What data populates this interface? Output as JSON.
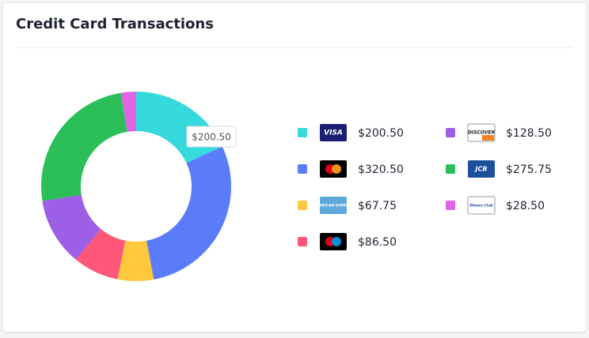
{
  "chart_data": {
    "type": "pie",
    "donut": true,
    "title": "Credit Card Transactions",
    "categories": [
      "VISA",
      null,
      "AMERICAN EXPRESS",
      null,
      "DISCOVER",
      "JCB",
      "Diners Club"
    ],
    "values": [
      200.5,
      320.5,
      67.75,
      86.5,
      128.5,
      275.75,
      28.5
    ],
    "value_labels": [
      "$200.50",
      "$320.50",
      "$67.75",
      "$86.50",
      "$128.50",
      "$275.75",
      "$28.50"
    ],
    "colors": [
      "#36d9dc",
      "#5b7cfa",
      "#ffc83d",
      "#ff5779",
      "#9c5fe6",
      "#2bbf5a",
      "#e064e6"
    ],
    "tooltip": "$200.50"
  }
}
